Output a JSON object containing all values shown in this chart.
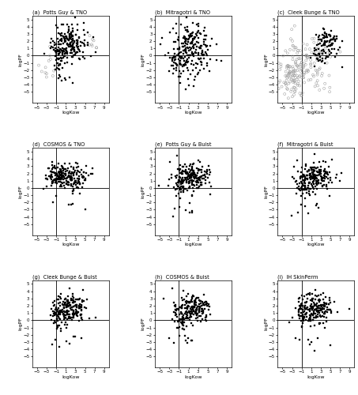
{
  "titles": [
    "(a)  Potts Guy & TNO",
    "(b)  Mitragotri & TNO",
    "(c)  Cleek Bunge & TNO",
    "(d)  COSMOS & TNO",
    "(e)  Potts Guy & Buist",
    "(f)  Mitragotri & Buist",
    "(g)  Cleek Bunge & Buist",
    "(h)  COSMOS & Buist",
    "(i)  IH SkinPerm"
  ],
  "xlabel": "logKow",
  "ylabel": "logPF",
  "xlim": [
    -6,
    10
  ],
  "ylim": [
    -6.5,
    5.5
  ],
  "xticks": [
    -5,
    -3,
    -1,
    1,
    3,
    5,
    7,
    9
  ],
  "yticks": [
    -5,
    -4,
    -3,
    -2,
    -1,
    0,
    1,
    2,
    3,
    4,
    5
  ],
  "vline": -1,
  "hline": 0,
  "marker_color_black": "#000000",
  "marker_color_gray": "#999999",
  "seed": 42,
  "subplot_configs": [
    {
      "comment": "(a) Potts Guy & TNO",
      "black_clusters": [
        [
          200,
          1.8,
          2.0,
          1.5,
          1.3
        ],
        [
          25,
          -0.5,
          0.6,
          -0.3,
          0.8
        ],
        [
          8,
          1.0,
          1.5,
          -3.0,
          0.6
        ]
      ],
      "gray_clusters": [
        [
          12,
          -2.8,
          0.8,
          -1.5,
          0.9
        ],
        [
          8,
          6.5,
          0.6,
          1.8,
          0.5
        ]
      ]
    },
    {
      "comment": "(b) Mitragotri & TNO",
      "black_clusters": [
        [
          200,
          1.5,
          2.0,
          0.8,
          1.5
        ],
        [
          30,
          -1.2,
          0.7,
          -0.8,
          1.0
        ],
        [
          10,
          0.5,
          1.5,
          -3.5,
          0.7
        ]
      ],
      "gray_clusters": []
    },
    {
      "comment": "(c) Cleek Bunge & TNO",
      "black_clusters": [
        [
          90,
          4.2,
          1.3,
          1.6,
          1.0
        ],
        [
          15,
          3.0,
          0.8,
          -0.3,
          0.5
        ]
      ],
      "gray_clusters": [
        [
          120,
          0.0,
          3.0,
          -1.2,
          2.0
        ],
        [
          80,
          -2.5,
          1.5,
          -3.0,
          1.5
        ]
      ]
    },
    {
      "comment": "(d) COSMOS & TNO",
      "black_clusters": [
        [
          180,
          1.5,
          2.0,
          1.5,
          0.9
        ],
        [
          40,
          -1.0,
          0.9,
          2.0,
          0.7
        ],
        [
          5,
          0.5,
          1.5,
          -2.5,
          0.4
        ]
      ],
      "gray_clusters": []
    },
    {
      "comment": "(e) Potts Guy & Buist",
      "black_clusters": [
        [
          180,
          1.8,
          1.8,
          1.6,
          1.0
        ],
        [
          35,
          -0.8,
          0.8,
          0.4,
          1.0
        ],
        [
          8,
          0.5,
          1.8,
          -2.8,
          0.5
        ]
      ],
      "gray_clusters": []
    },
    {
      "comment": "(f) Mitragotri & Buist",
      "black_clusters": [
        [
          180,
          1.8,
          1.8,
          1.6,
          1.0
        ],
        [
          35,
          -0.8,
          0.8,
          0.4,
          1.0
        ],
        [
          8,
          0.5,
          1.8,
          -2.8,
          0.5
        ]
      ],
      "gray_clusters": []
    },
    {
      "comment": "(g) Cleek Bunge & Buist",
      "black_clusters": [
        [
          180,
          1.8,
          1.8,
          1.5,
          1.0
        ],
        [
          35,
          -0.8,
          0.8,
          0.5,
          0.8
        ],
        [
          8,
          0.5,
          1.8,
          -2.8,
          0.5
        ]
      ],
      "gray_clusters": []
    },
    {
      "comment": "(h) COSMOS & Buist",
      "black_clusters": [
        [
          180,
          1.8,
          1.8,
          1.5,
          1.0
        ],
        [
          35,
          -0.8,
          0.8,
          0.5,
          1.0
        ],
        [
          8,
          0.5,
          1.8,
          -2.8,
          0.5
        ]
      ],
      "gray_clusters": []
    },
    {
      "comment": "(i) IH SkinPerm",
      "black_clusters": [
        [
          180,
          1.8,
          1.8,
          1.5,
          1.0
        ],
        [
          35,
          -0.8,
          0.8,
          0.5,
          1.0
        ],
        [
          8,
          0.5,
          1.8,
          -2.8,
          0.5
        ]
      ],
      "gray_clusters": []
    }
  ]
}
